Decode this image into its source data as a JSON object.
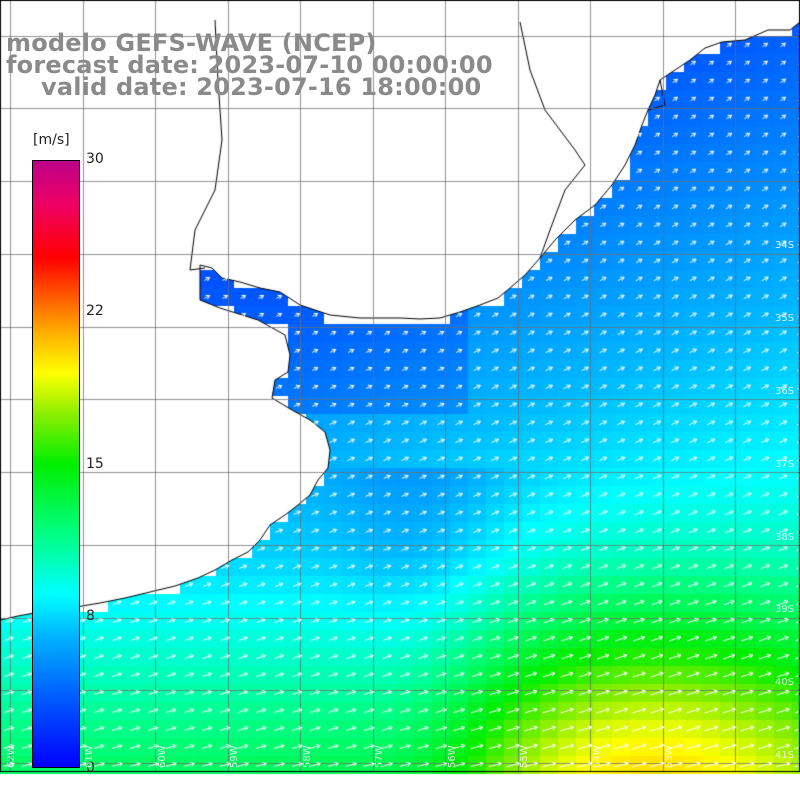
{
  "title": {
    "line1": "modelo GEFS-WAVE (NCEP)",
    "line2": "forecast date: 2023-07-10 00:00:00",
    "line3": "valid date: 2023-07-16 18:00:00"
  },
  "colorbar": {
    "unit": "[m/s]",
    "ticks": [
      "30",
      "22",
      "15",
      "8",
      "0"
    ],
    "range": [
      0,
      30
    ]
  },
  "axes": {
    "lat_labels": [
      "34S",
      "35S",
      "36S",
      "37S",
      "38S",
      "39S",
      "40S",
      "41S"
    ],
    "lon_labels": [
      "62W",
      "61W",
      "60W",
      "59W",
      "58W",
      "57W",
      "56W",
      "55W",
      "54W",
      "53W"
    ]
  },
  "colors": {
    "title_gray": "#8a8a8a",
    "land": "#ffffff",
    "coast": "#000000",
    "grid": "#888888",
    "arrow": "#ffffff"
  },
  "field": {
    "variable": "wind speed",
    "wind_direction": "from southwest",
    "speed_range_shown": [
      4,
      18
    ]
  }
}
